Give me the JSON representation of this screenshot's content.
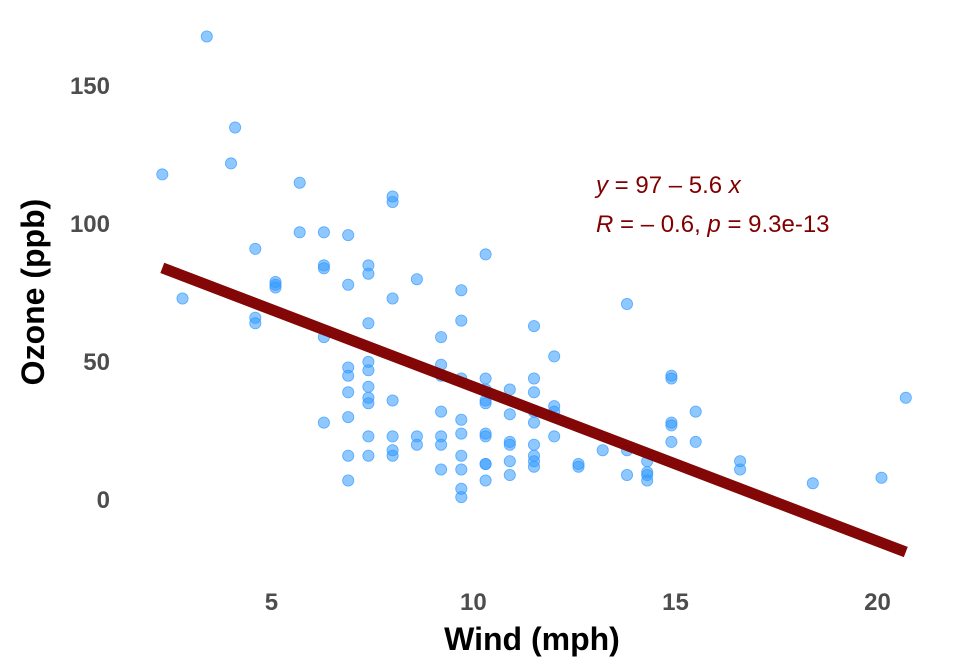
{
  "chart_data": {
    "type": "scatter",
    "title": "",
    "xlabel": "Wind (mph)",
    "ylabel": "Ozone (ppb)",
    "xlim": [
      1.5,
      21.3
    ],
    "ylim": [
      -24,
      174
    ],
    "x_ticks": [
      5,
      10,
      15,
      20
    ],
    "x_tick_labels": [
      "5",
      "10",
      "15",
      "20"
    ],
    "y_ticks": [
      0,
      50,
      100,
      150
    ],
    "y_tick_labels": [
      "0",
      "50",
      "100",
      "150"
    ],
    "grid": false,
    "point_color": "#3399ff",
    "line_color": "#800000",
    "regression": {
      "intercept": 97,
      "slope": -5.6,
      "x_range": [
        2.3,
        20.7
      ],
      "equation": {
        "y": "y",
        "eq": " = 97 – 5.6 ",
        "x": "x"
      },
      "stats": {
        "r": "R",
        "r_eq": " = – 0.6, ",
        "p": "p",
        "p_eq": " = 9.3e-13"
      }
    },
    "points": [
      [
        2.3,
        118
      ],
      [
        2.8,
        73
      ],
      [
        3.4,
        168
      ],
      [
        4.0,
        122
      ],
      [
        4.1,
        135
      ],
      [
        4.6,
        91
      ],
      [
        4.6,
        66
      ],
      [
        4.6,
        64
      ],
      [
        5.1,
        78
      ],
      [
        5.1,
        79
      ],
      [
        5.1,
        77
      ],
      [
        5.7,
        115
      ],
      [
        5.7,
        97
      ],
      [
        6.3,
        85
      ],
      [
        6.3,
        84
      ],
      [
        6.3,
        97
      ],
      [
        6.3,
        59
      ],
      [
        6.3,
        28
      ],
      [
        6.9,
        96
      ],
      [
        6.9,
        78
      ],
      [
        6.9,
        48
      ],
      [
        6.9,
        45
      ],
      [
        6.9,
        39
      ],
      [
        6.9,
        30
      ],
      [
        6.9,
        16
      ],
      [
        6.9,
        7
      ],
      [
        7.4,
        85
      ],
      [
        7.4,
        82
      ],
      [
        7.4,
        64
      ],
      [
        7.4,
        50
      ],
      [
        7.4,
        47
      ],
      [
        7.4,
        41
      ],
      [
        7.4,
        37
      ],
      [
        7.4,
        35
      ],
      [
        7.4,
        23
      ],
      [
        7.4,
        16
      ],
      [
        8.0,
        110
      ],
      [
        8.0,
        108
      ],
      [
        8.0,
        73
      ],
      [
        8.0,
        36
      ],
      [
        8.0,
        23
      ],
      [
        8.0,
        18
      ],
      [
        8.0,
        16
      ],
      [
        8.6,
        80
      ],
      [
        8.6,
        23
      ],
      [
        8.6,
        20
      ],
      [
        9.2,
        59
      ],
      [
        9.2,
        49
      ],
      [
        9.2,
        45
      ],
      [
        9.2,
        32
      ],
      [
        9.2,
        23
      ],
      [
        9.2,
        20
      ],
      [
        9.2,
        11
      ],
      [
        9.7,
        76
      ],
      [
        9.7,
        65
      ],
      [
        9.7,
        44
      ],
      [
        9.7,
        29
      ],
      [
        9.7,
        24
      ],
      [
        9.7,
        16
      ],
      [
        9.7,
        11
      ],
      [
        9.7,
        4
      ],
      [
        9.7,
        1
      ],
      [
        10.3,
        89
      ],
      [
        10.3,
        44
      ],
      [
        10.3,
        40
      ],
      [
        10.3,
        36
      ],
      [
        10.3,
        35
      ],
      [
        10.3,
        24
      ],
      [
        10.3,
        23
      ],
      [
        10.3,
        13
      ],
      [
        10.3,
        13
      ],
      [
        10.3,
        7
      ],
      [
        10.9,
        40
      ],
      [
        10.9,
        31
      ],
      [
        10.9,
        21
      ],
      [
        10.9,
        20
      ],
      [
        10.9,
        14
      ],
      [
        10.9,
        9
      ],
      [
        11.5,
        63
      ],
      [
        11.5,
        44
      ],
      [
        11.5,
        39
      ],
      [
        11.5,
        32
      ],
      [
        11.5,
        28
      ],
      [
        11.5,
        20
      ],
      [
        11.5,
        16
      ],
      [
        11.5,
        14
      ],
      [
        11.5,
        12
      ],
      [
        12.0,
        52
      ],
      [
        12.0,
        34
      ],
      [
        12.0,
        32
      ],
      [
        12.0,
        23
      ],
      [
        12.6,
        13
      ],
      [
        12.6,
        12
      ],
      [
        13.2,
        18
      ],
      [
        13.8,
        71
      ],
      [
        13.8,
        18
      ],
      [
        13.8,
        9
      ],
      [
        14.3,
        14
      ],
      [
        14.3,
        10
      ],
      [
        14.3,
        9
      ],
      [
        14.3,
        7
      ],
      [
        14.9,
        45
      ],
      [
        14.9,
        44
      ],
      [
        14.9,
        28
      ],
      [
        14.9,
        27
      ],
      [
        14.9,
        21
      ],
      [
        15.5,
        32
      ],
      [
        15.5,
        21
      ],
      [
        16.6,
        14
      ],
      [
        16.6,
        11
      ],
      [
        18.4,
        6
      ],
      [
        20.1,
        8
      ],
      [
        20.7,
        37
      ]
    ]
  }
}
